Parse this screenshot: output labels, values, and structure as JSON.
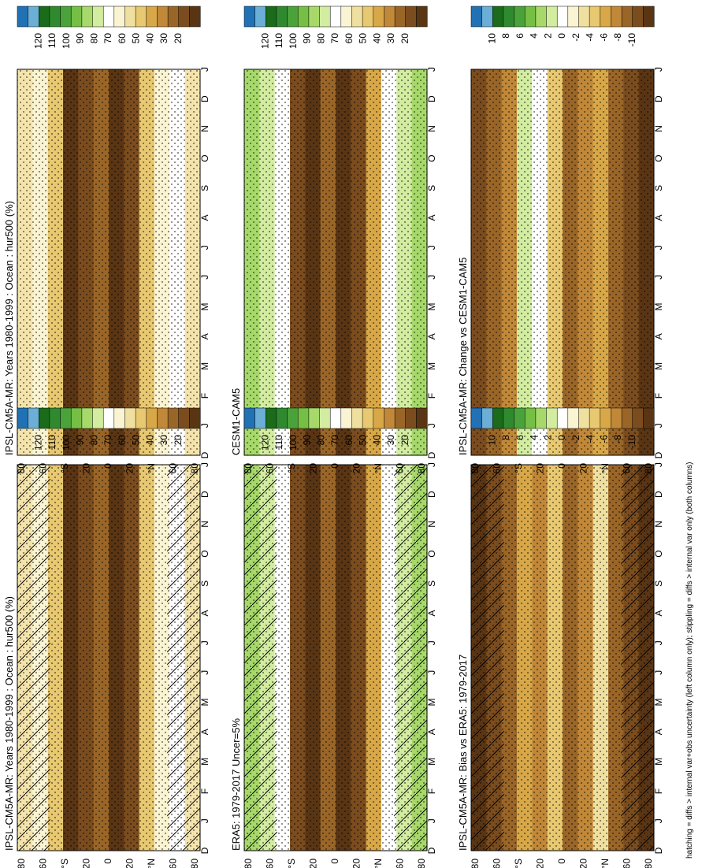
{
  "footnote": "hatching = diffs > internal var+obs uncertainty (left column only); stippling = diffs > internal var only (both columns)",
  "month_labels": [
    "D",
    "J",
    "F",
    "M",
    "A",
    "M",
    "J",
    "J",
    "A",
    "S",
    "O",
    "N",
    "D",
    "J"
  ],
  "lat_labels": [
    "80",
    "60",
    "°S",
    "20",
    "0",
    "20",
    "°N",
    "60",
    "80"
  ],
  "colorbars": {
    "absolute": {
      "labels": [
        "120",
        "110",
        "100",
        "90",
        "80",
        "70",
        "60",
        "50",
        "40",
        "30",
        "20"
      ],
      "colors": [
        "#2171b5",
        "#6baed6",
        "#1a6b1a",
        "#2f8a2f",
        "#4aa33a",
        "#76bf45",
        "#a6d96a",
        "#d2eca0",
        "#ffffff",
        "#fbf4d3",
        "#f0e0a0",
        "#e8c870",
        "#d8a848",
        "#c08838",
        "#9a6628",
        "#7a4c1e",
        "#5a3514"
      ]
    },
    "difference": {
      "labels": [
        "10",
        "8",
        "6",
        "4",
        "2",
        "0",
        "-2",
        "-4",
        "-6",
        "-8",
        "-10"
      ],
      "colors": [
        "#2171b5",
        "#6baed6",
        "#1a6b1a",
        "#2f8a2f",
        "#4aa33a",
        "#76bf45",
        "#a6d96a",
        "#d2eca0",
        "#ffffff",
        "#fbf4d3",
        "#f0e0a0",
        "#e8c870",
        "#d8a848",
        "#c08838",
        "#9a6628",
        "#7a4c1e",
        "#5a3514"
      ]
    }
  },
  "chart_data": [
    {
      "type": "heatmap",
      "title": "IPSL-CM5A-MR: Years 1980-1999 : Ocean : hur500 (%)",
      "x": "month",
      "y": "latitude",
      "colorbar": "absolute",
      "overlay": "hatching+stippling",
      "value_range": [
        20,
        120
      ]
    },
    {
      "type": "heatmap",
      "title": "IPSL-CM5A-MR: Years 1980-1999 : Ocean : hur500 (%)",
      "x": "month",
      "y": "latitude",
      "colorbar": "absolute",
      "overlay": "stippling",
      "value_range": [
        20,
        120
      ]
    },
    {
      "type": "heatmap",
      "title": "ERA5: 1979-2017 Uncer=5%",
      "x": "month",
      "y": "latitude",
      "colorbar": "absolute",
      "overlay": "hatching+stippling",
      "value_range": [
        20,
        120
      ]
    },
    {
      "type": "heatmap",
      "title": "CESM1-CAM5",
      "x": "month",
      "y": "latitude",
      "colorbar": "absolute",
      "overlay": "stippling",
      "value_range": [
        20,
        120
      ]
    },
    {
      "type": "heatmap",
      "title": "IPSL-CM5A-MR: Bias vs ERA5: 1979-2017",
      "x": "month",
      "y": "latitude",
      "colorbar": "difference",
      "overlay": "hatching+stippling",
      "value_range": [
        -10,
        10
      ]
    },
    {
      "type": "heatmap",
      "title": "IPSL-CM5A-MR: Change vs CESM1-CAM5",
      "x": "month",
      "y": "latitude",
      "colorbar": "difference",
      "overlay": "stippling",
      "value_range": [
        -10,
        10
      ]
    }
  ]
}
